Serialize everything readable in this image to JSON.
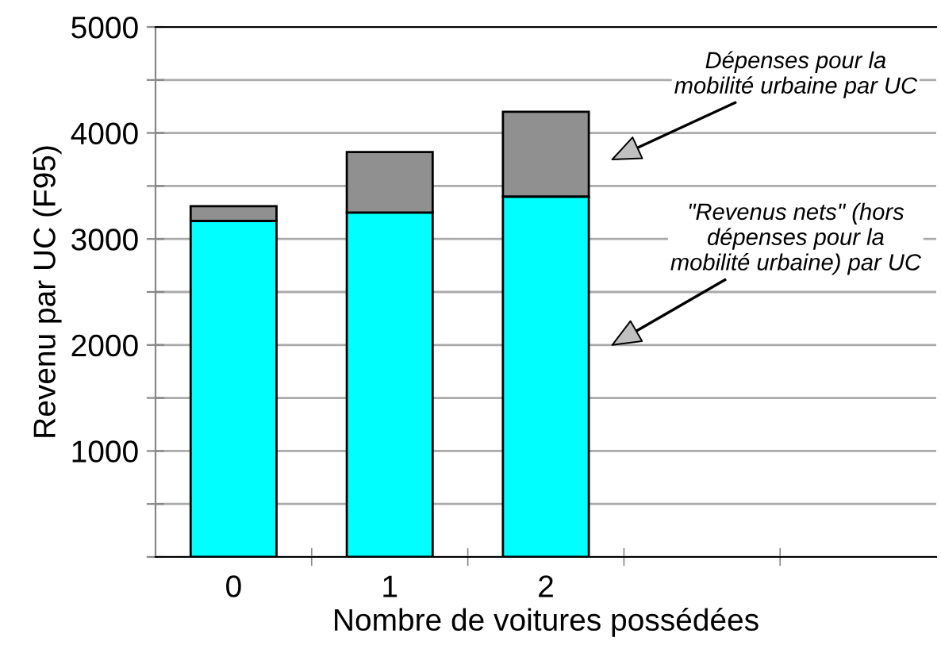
{
  "chart_data": {
    "type": "bar",
    "stacked": true,
    "xlabel": "Nombre de voitures possédées",
    "ylabel": "Revenu par UC (F95)",
    "categories": [
      "0",
      "1",
      "2",
      null,
      null
    ],
    "series": [
      {
        "color": "#00ffff",
        "values": [
          3170,
          3250,
          3400,
          null,
          null
        ]
      },
      {
        "color": "#909090",
        "values": [
          140,
          570,
          800,
          null,
          null
        ]
      }
    ],
    "ylim": [
      0,
      5000
    ],
    "yticks": [
      {
        "value": 0,
        "label": null
      },
      {
        "value": 500,
        "label": null
      },
      1000,
      {
        "value": 1500,
        "label": null
      },
      2000,
      {
        "value": 2500,
        "label": null
      },
      3000,
      {
        "value": 3500,
        "label": null
      },
      4000,
      {
        "value": 4500,
        "label": null
      },
      5000
    ],
    "grid": "y",
    "annotations": [
      "Dépenses pour la\nmobilité urbaine par UC",
      "\"Revenus nets\" (hors\ndépenses pour la\nmobilité urbaine) par UC"
    ]
  }
}
